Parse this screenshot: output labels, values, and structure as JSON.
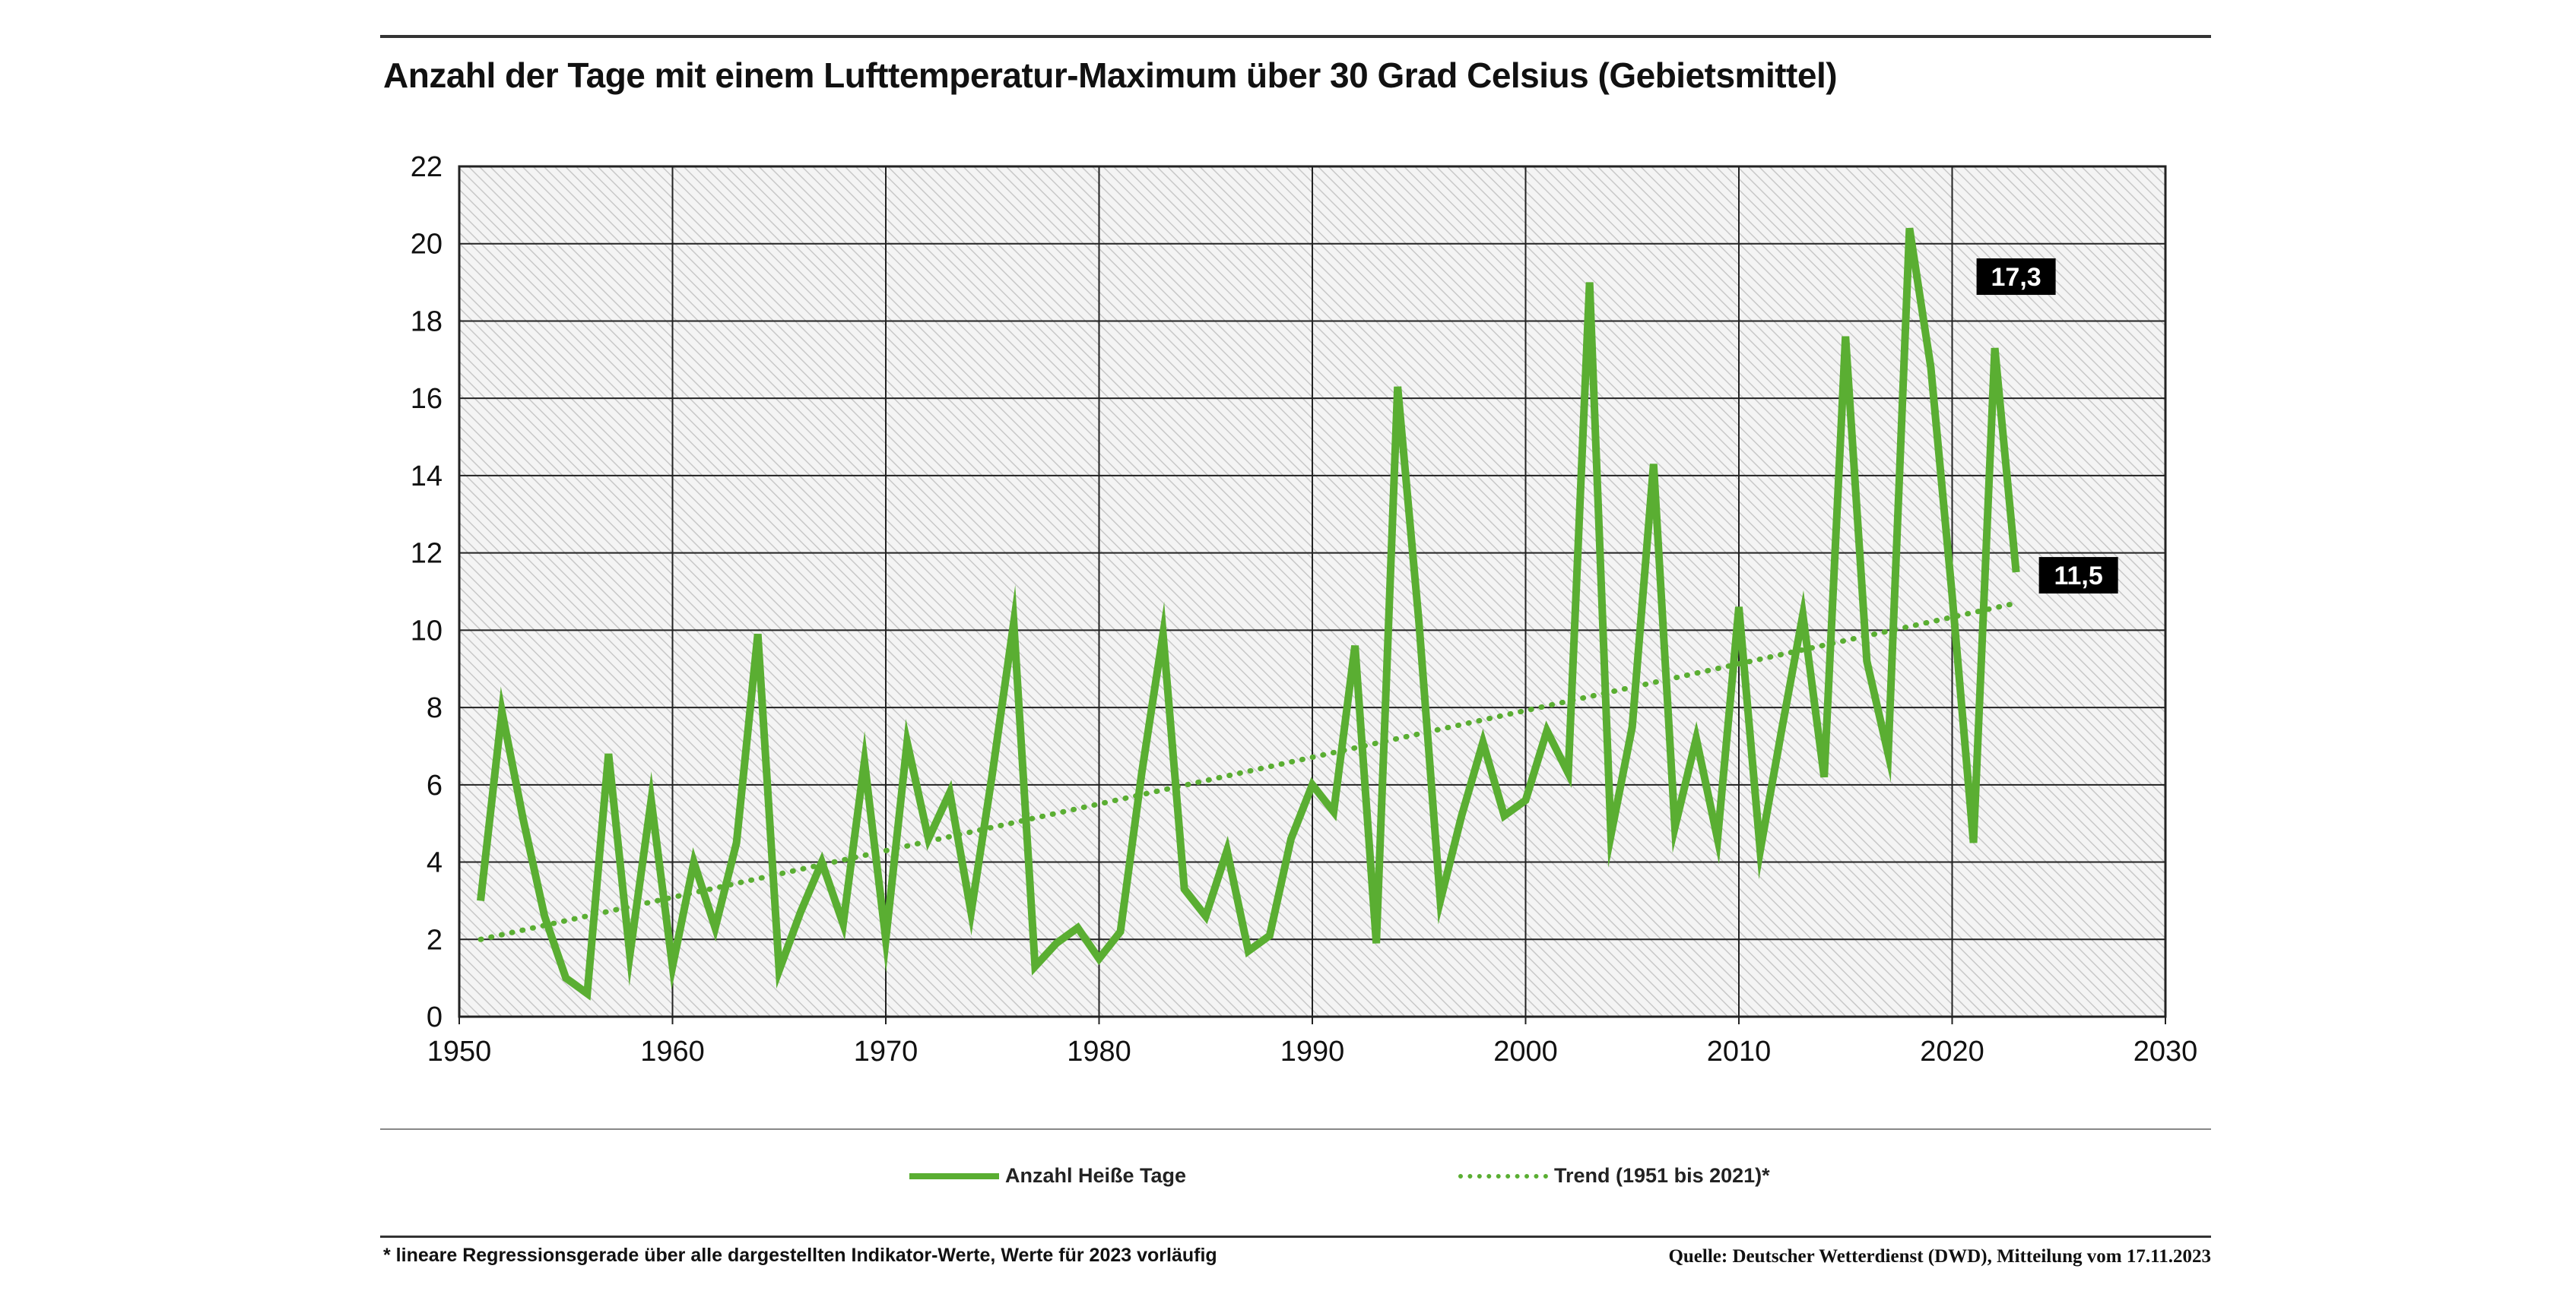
{
  "chart_data": {
    "type": "line",
    "title": "Anzahl der Tage mit einem Lufttemperatur-Maximum über 30 Grad Celsius (Gebietsmittel)",
    "xlim": [
      1950,
      2030
    ],
    "ylim": [
      0,
      22
    ],
    "xticks": [
      1950,
      1960,
      1970,
      1980,
      1990,
      2000,
      2010,
      2020,
      2030
    ],
    "yticks": [
      0,
      2,
      4,
      6,
      8,
      10,
      12,
      14,
      16,
      18,
      20,
      22
    ],
    "grid": true,
    "legend_position": "bottom",
    "series": [
      {
        "name": "Anzahl Heiße Tage",
        "style": "solid",
        "color": "#5aae32",
        "x": [
          1951,
          1952,
          1953,
          1954,
          1955,
          1956,
          1957,
          1958,
          1959,
          1960,
          1961,
          1962,
          1963,
          1964,
          1965,
          1966,
          1967,
          1968,
          1969,
          1970,
          1971,
          1972,
          1973,
          1974,
          1975,
          1976,
          1977,
          1978,
          1979,
          1980,
          1981,
          1982,
          1983,
          1984,
          1985,
          1986,
          1987,
          1988,
          1989,
          1990,
          1991,
          1992,
          1993,
          1994,
          1995,
          1996,
          1997,
          1998,
          1999,
          2000,
          2001,
          2002,
          2003,
          2004,
          2005,
          2006,
          2007,
          2008,
          2009,
          2010,
          2011,
          2012,
          2013,
          2014,
          2015,
          2016,
          2017,
          2018,
          2019,
          2020,
          2021,
          2022,
          2023
        ],
        "values": [
          3.0,
          7.9,
          5.1,
          2.6,
          1.0,
          0.6,
          6.8,
          1.6,
          5.6,
          1.3,
          4.0,
          2.3,
          4.5,
          9.9,
          1.2,
          2.7,
          4.0,
          2.4,
          6.6,
          2.0,
          7.1,
          4.6,
          5.8,
          2.7,
          6.3,
          10.2,
          1.3,
          1.9,
          2.3,
          1.5,
          2.2,
          6.3,
          9.9,
          3.3,
          2.6,
          4.3,
          1.7,
          2.1,
          4.6,
          6.0,
          5.3,
          9.6,
          1.9,
          16.3,
          10.2,
          3.0,
          5.2,
          7.1,
          5.2,
          5.6,
          7.4,
          6.3,
          19.0,
          4.7,
          7.5,
          14.3,
          4.9,
          7.2,
          4.6,
          10.6,
          4.3,
          7.4,
          10.4,
          6.2,
          17.6,
          9.2,
          6.8,
          20.4,
          16.8,
          10.9,
          4.5,
          17.3,
          11.5
        ]
      },
      {
        "name": "Trend (1951 bis 2021)*",
        "style": "dotted",
        "color": "#5aae32",
        "x": [
          1951,
          2023
        ],
        "values": [
          2.0,
          10.7
        ]
      }
    ],
    "annotations": [
      {
        "x": 2022,
        "y": 17.3,
        "text": "17,3"
      },
      {
        "x": 2023,
        "y": 11.5,
        "text": "11,5"
      }
    ]
  },
  "footnote": "* lineare Regressionsgerade über alle dargestellten Indikator-Werte, Werte für 2023 vorläufig",
  "source": "Quelle: Deutscher Wetterdienst (DWD), Mitteilung vom 17.11.2023"
}
